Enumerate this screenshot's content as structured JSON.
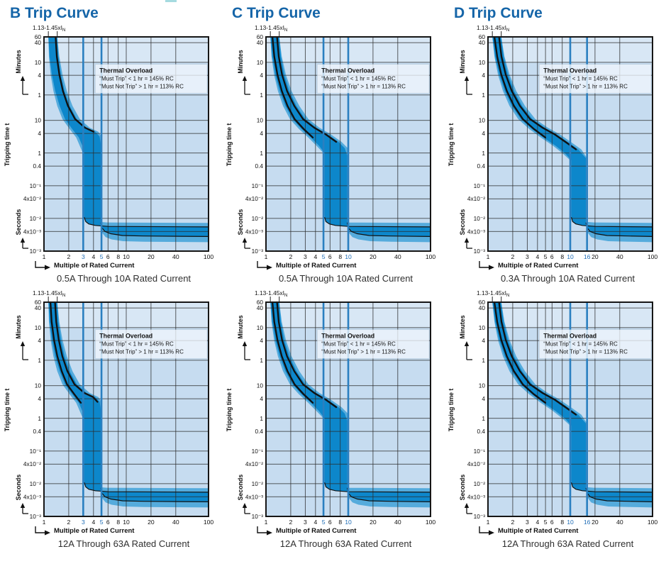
{
  "chart_data": {
    "columns": [
      {
        "title": "B Trip Curve"
      },
      {
        "title": "C Trip Curve"
      },
      {
        "title": "D Trip Curve"
      }
    ],
    "shared": {
      "annotation": {
        "text": "1.13-1.45xI",
        "sub": "N",
        "tick_x": [
          1.13,
          1.45
        ]
      },
      "overload_box": {
        "title": "Thermal Overload",
        "line1": "“Must Trip” < 1 hr = 145% RC",
        "line2": "“Must Not Trip” > 1 hr = 113% RC"
      },
      "y_axis": {
        "label": "Tripping time t",
        "upper_unit": "Minutes",
        "lower_unit": "Seconds",
        "ticks": [
          [
            3600,
            "60"
          ],
          [
            2400,
            "40"
          ],
          [
            600,
            "10"
          ],
          [
            240,
            "4"
          ],
          [
            60,
            "1"
          ],
          [
            10,
            "10"
          ],
          [
            4,
            "4"
          ],
          [
            1,
            "1"
          ],
          [
            0.4,
            "0.4"
          ],
          [
            0.1,
            "10⁻¹"
          ],
          [
            0.04,
            "4x10⁻²"
          ],
          [
            0.01,
            "10⁻²"
          ],
          [
            0.004,
            "4x10⁻³"
          ],
          [
            0.001,
            "10⁻³"
          ]
        ]
      },
      "x_axis": {
        "label": "Multiple of Rated Current",
        "range": [
          1,
          100
        ]
      },
      "colors": {
        "title": "#1565a8",
        "plot_bg": "#c6dcf0",
        "plot_bg_top": "#d8e7f5",
        "band_light": "#55abdc",
        "band_dark": "#0d87cb",
        "grid": "#2b2b2b",
        "highlight": "#2a7fc0",
        "highlight_label": "#1f6db6",
        "curve": "#101010",
        "border": "#161616",
        "caption": "#2f2f2f",
        "box_fill": "rgba(240,246,252,0.78)",
        "box_stroke": "rgba(150,170,190,0.5)"
      }
    },
    "band_profiles": {
      "B": {
        "mag": [
          3.08,
          4.9
        ],
        "mag_outer": [
          3,
          5
        ],
        "left": [
          [
            1.13,
            3600
          ],
          [
            1.17,
            900
          ],
          [
            1.25,
            250
          ],
          [
            1.37,
            80
          ],
          [
            1.55,
            28
          ],
          [
            1.8,
            11
          ],
          [
            2.2,
            5.5
          ],
          [
            2.65,
            3
          ],
          [
            2.95,
            1.6
          ],
          [
            3.08,
            0.95
          ]
        ],
        "right": [
          [
            1.45,
            3600
          ],
          [
            1.5,
            900
          ],
          [
            1.61,
            250
          ],
          [
            1.78,
            80
          ],
          [
            2.05,
            28
          ],
          [
            2.5,
            11
          ],
          [
            3.3,
            6
          ],
          [
            4.2,
            4.5
          ],
          [
            4.75,
            3.2
          ],
          [
            4.9,
            1.9
          ]
        ],
        "knee_left": [
          [
            3.08,
            0.011
          ],
          [
            3.22,
            0.008
          ],
          [
            3.5,
            0.0068
          ],
          [
            4.2,
            0.0061
          ],
          [
            6,
            0.0057
          ],
          [
            100,
            0.0055
          ]
        ],
        "knee_right": [
          [
            4.9,
            0.0075
          ],
          [
            5.05,
            0.0052
          ],
          [
            5.5,
            0.004
          ],
          [
            6.5,
            0.0034
          ],
          [
            9,
            0.003
          ],
          [
            16,
            0.0029
          ],
          [
            100,
            0.0028
          ]
        ]
      },
      "C": {
        "mag": [
          5.15,
          9.7
        ],
        "mag_outer": [
          5,
          10
        ],
        "left": [
          [
            1.13,
            3600
          ],
          [
            1.19,
            900
          ],
          [
            1.3,
            250
          ],
          [
            1.47,
            80
          ],
          [
            1.72,
            28
          ],
          [
            2.1,
            11
          ],
          [
            2.7,
            5.5
          ],
          [
            3.5,
            3
          ],
          [
            4.4,
            1.7
          ],
          [
            5.15,
            1.0
          ]
        ],
        "right": [
          [
            1.45,
            3600
          ],
          [
            1.52,
            900
          ],
          [
            1.67,
            250
          ],
          [
            1.92,
            80
          ],
          [
            2.35,
            28
          ],
          [
            3.0,
            11
          ],
          [
            4.1,
            6
          ],
          [
            5.6,
            3.8
          ],
          [
            7.6,
            2.2
          ],
          [
            9.1,
            1.4
          ],
          [
            9.7,
            0.85
          ]
        ],
        "knee_left": [
          [
            5.15,
            0.011
          ],
          [
            5.35,
            0.008
          ],
          [
            5.9,
            0.0068
          ],
          [
            7,
            0.0061
          ],
          [
            10,
            0.0057
          ],
          [
            100,
            0.0055
          ]
        ],
        "knee_right": [
          [
            9.7,
            0.0075
          ],
          [
            10,
            0.0052
          ],
          [
            10.9,
            0.004
          ],
          [
            12.9,
            0.0034
          ],
          [
            18,
            0.003
          ],
          [
            32,
            0.0029
          ],
          [
            100,
            0.0028
          ]
        ]
      },
      "D": {
        "mag": [
          10.3,
          15.5
        ],
        "mag_outer": [
          10,
          16
        ],
        "left": [
          [
            1.13,
            3600
          ],
          [
            1.22,
            900
          ],
          [
            1.37,
            250
          ],
          [
            1.6,
            80
          ],
          [
            1.95,
            28
          ],
          [
            2.5,
            11
          ],
          [
            3.4,
            5.5
          ],
          [
            4.7,
            3
          ],
          [
            6.6,
            1.7
          ],
          [
            8.6,
            1.0
          ],
          [
            10.3,
            0.6
          ]
        ],
        "right": [
          [
            1.45,
            3600
          ],
          [
            1.55,
            900
          ],
          [
            1.75,
            250
          ],
          [
            2.07,
            80
          ],
          [
            2.6,
            28
          ],
          [
            3.45,
            11
          ],
          [
            4.9,
            6
          ],
          [
            6.8,
            3.8
          ],
          [
            9.3,
            2.2
          ],
          [
            12.5,
            1.3
          ],
          [
            15.5,
            0.7
          ]
        ],
        "knee_left": [
          [
            10.3,
            0.011
          ],
          [
            10.7,
            0.008
          ],
          [
            11.7,
            0.0068
          ],
          [
            14,
            0.0061
          ],
          [
            20,
            0.0057
          ],
          [
            100,
            0.0055
          ]
        ],
        "knee_right": [
          [
            15.5,
            0.0075
          ],
          [
            16,
            0.0052
          ],
          [
            17.4,
            0.004
          ],
          [
            20.6,
            0.0034
          ],
          [
            28,
            0.003
          ],
          [
            50,
            0.0029
          ],
          [
            100,
            0.0028
          ]
        ]
      }
    },
    "charts": [
      {
        "column": 0,
        "profile": "B",
        "caption": "0.5A Through 10A Rated Current",
        "x_ticks": [
          1,
          2,
          3,
          4,
          5,
          6,
          8,
          10,
          20,
          40,
          100
        ],
        "highlight": [
          3,
          5
        ],
        "black": {
          "style": "single",
          "end": 4.4
        }
      },
      {
        "column": 0,
        "profile": "B",
        "caption": "12A Through 63A Rated Current",
        "x_ticks": [
          1,
          2,
          3,
          4,
          5,
          6,
          8,
          10,
          20,
          40,
          100
        ],
        "highlight": [
          3,
          5
        ],
        "black": {
          "style": "double",
          "endL": 2.9,
          "endR": 3.1
        }
      },
      {
        "column": 1,
        "profile": "C",
        "caption": "0.5A Through 10A Rated Current",
        "x_ticks": [
          1,
          2,
          3,
          4,
          5,
          6,
          8,
          10,
          20,
          40,
          100
        ],
        "highlight": [
          5,
          10
        ],
        "black": {
          "style": "double",
          "endL": 2.9,
          "endR": 2.1
        }
      },
      {
        "column": 1,
        "profile": "C",
        "caption": "12A Through 63A Rated Current",
        "x_ticks": [
          1,
          2,
          3,
          4,
          5,
          6,
          8,
          10,
          20,
          40,
          100
        ],
        "highlight": [
          5,
          10
        ],
        "black": {
          "style": "double",
          "endL": 2.9,
          "endR": 2.1
        }
      },
      {
        "column": 2,
        "profile": "D",
        "caption": "0.3A Through 10A Rated Current",
        "x_ticks": [
          1,
          2,
          3,
          4,
          5,
          6,
          8,
          10,
          16,
          20,
          40,
          100
        ],
        "highlight": [
          10,
          16
        ],
        "black": {
          "style": "double",
          "endL": 2.9,
          "endR": 1.2
        }
      },
      {
        "column": 2,
        "profile": "D",
        "caption": "12A Through 63A Rated Current",
        "x_ticks": [
          1,
          2,
          3,
          4,
          5,
          6,
          8,
          10,
          16,
          20,
          40,
          100
        ],
        "highlight": [
          10,
          16
        ],
        "black": {
          "style": "double",
          "endL": 2.9,
          "endR": 1.2
        }
      }
    ]
  }
}
